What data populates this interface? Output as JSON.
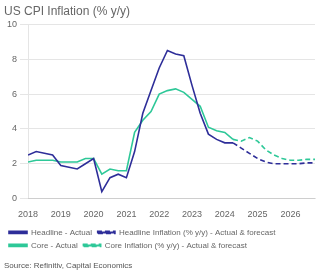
{
  "chart_data": {
    "type": "line",
    "title": "US CPI Inflation (% y/y)",
    "annotations": [
      "Source: Refinitiv, Capital Economics"
    ],
    "xlim": [
      2018.0,
      2026.75
    ],
    "xticks": [
      2018,
      2019,
      2020,
      2021,
      2022,
      2023,
      2024,
      2025,
      2026
    ],
    "ylim": [
      0,
      10
    ],
    "yticks": [
      0,
      2,
      4,
      6,
      8,
      10
    ],
    "grid": "y",
    "legend": "bottom",
    "series": [
      {
        "name": "Headline - Actual",
        "color": "#2e2e99",
        "line_style": "solid",
        "x": [
          2018.0,
          2018.25,
          2018.5,
          2018.75,
          2019.0,
          2019.25,
          2019.5,
          2019.75,
          2020.0,
          2020.25,
          2020.5,
          2020.75,
          2021.0,
          2021.25,
          2021.5,
          2021.75,
          2022.0,
          2022.25,
          2022.5,
          2022.75,
          2023.0,
          2023.25,
          2023.5,
          2023.75,
          2024.0,
          2024.25
        ],
        "values": [
          2.5,
          2.7,
          2.6,
          2.5,
          1.9,
          1.8,
          1.7,
          2.0,
          2.3,
          0.4,
          1.2,
          1.4,
          1.2,
          2.7,
          4.9,
          6.2,
          7.5,
          8.5,
          8.3,
          8.2,
          6.5,
          4.9,
          3.7,
          3.4,
          3.2,
          3.2
        ]
      },
      {
        "name": "Headline Inflation (% y/y) - Actual & forecast",
        "color": "#2e2e99",
        "line_style": "dashed",
        "x": [
          2024.25,
          2024.5,
          2024.75,
          2025.0,
          2025.25,
          2025.5,
          2025.75,
          2026.0,
          2026.25,
          2026.5,
          2026.75
        ],
        "values": [
          3.2,
          2.9,
          2.6,
          2.3,
          2.1,
          2.0,
          2.0,
          2.0,
          2.0,
          2.05,
          2.05
        ]
      },
      {
        "name": "Core - Actual",
        "color": "#2ec898",
        "line_style": "solid",
        "x": [
          2018.0,
          2018.25,
          2018.5,
          2018.75,
          2019.0,
          2019.25,
          2019.5,
          2019.75,
          2020.0,
          2020.25,
          2020.5,
          2020.75,
          2021.0,
          2021.25,
          2021.5,
          2021.75,
          2022.0,
          2022.25,
          2022.5,
          2022.75,
          2023.0,
          2023.25,
          2023.5,
          2023.75,
          2024.0,
          2024.25
        ],
        "values": [
          2.1,
          2.2,
          2.2,
          2.2,
          2.1,
          2.1,
          2.1,
          2.3,
          2.3,
          1.4,
          1.7,
          1.6,
          1.6,
          3.8,
          4.5,
          5.0,
          6.0,
          6.2,
          6.3,
          6.1,
          5.7,
          5.3,
          4.1,
          3.9,
          3.8,
          3.4
        ]
      },
      {
        "name": "Core Inflation (% y/y) - Actual & forecast",
        "color": "#2ec898",
        "line_style": "dashed",
        "x": [
          2024.25,
          2024.5,
          2024.75,
          2025.0,
          2025.25,
          2025.5,
          2025.75,
          2026.0,
          2026.25,
          2026.5,
          2026.75
        ],
        "values": [
          3.4,
          3.3,
          3.5,
          3.3,
          2.8,
          2.5,
          2.3,
          2.2,
          2.2,
          2.25,
          2.25
        ]
      }
    ]
  }
}
